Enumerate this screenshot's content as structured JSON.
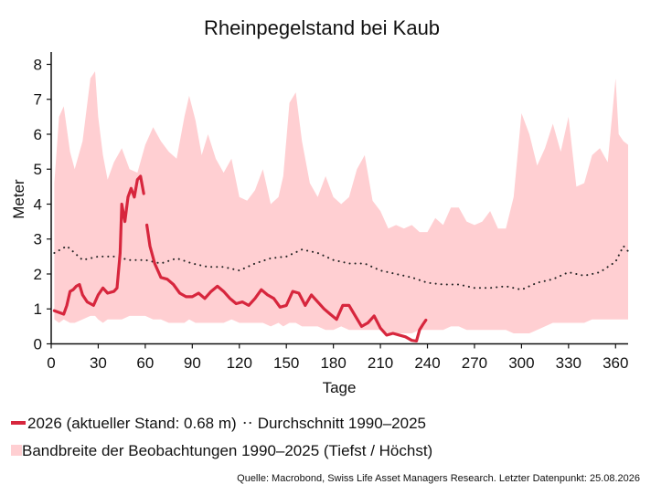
{
  "chart_data": {
    "type": "line",
    "title": "Rheinpegelstand bei Kaub",
    "xlabel": "Tage",
    "ylabel": "Meter",
    "xlim": [
      0,
      368
    ],
    "ylim": [
      0,
      8.3
    ],
    "x_ticks": [
      0,
      30,
      60,
      90,
      120,
      150,
      180,
      210,
      240,
      270,
      300,
      330,
      360
    ],
    "y_ticks": [
      0,
      1,
      2,
      3,
      4,
      5,
      6,
      7,
      8
    ],
    "grid": false,
    "legend_position": "bottom",
    "colors": {
      "current": "#d7263d",
      "average": "#222222",
      "band": "#ffcfd2"
    },
    "band": {
      "name": "Bandbreite der Beobachtungen 1990–2025 (Tiefst / Höchst)",
      "x": [
        2,
        5,
        8,
        12,
        15,
        20,
        25,
        28,
        30,
        33,
        36,
        40,
        45,
        50,
        55,
        60,
        65,
        70,
        75,
        80,
        85,
        88,
        92,
        96,
        100,
        105,
        110,
        115,
        120,
        125,
        130,
        135,
        140,
        145,
        148,
        152,
        156,
        160,
        165,
        170,
        175,
        180,
        185,
        190,
        195,
        200,
        205,
        210,
        215,
        220,
        225,
        230,
        235,
        240,
        245,
        250,
        255,
        260,
        265,
        270,
        275,
        280,
        285,
        290,
        295,
        300,
        305,
        310,
        315,
        320,
        325,
        330,
        335,
        340,
        345,
        350,
        355,
        360,
        362,
        365,
        368
      ],
      "high": [
        4.6,
        6.5,
        6.8,
        5.5,
        5.0,
        5.8,
        7.6,
        7.8,
        6.5,
        5.4,
        4.7,
        5.2,
        5.6,
        5.0,
        4.9,
        5.7,
        6.2,
        5.8,
        5.5,
        5.3,
        6.5,
        7.1,
        6.4,
        5.4,
        6.0,
        5.3,
        4.9,
        5.3,
        4.2,
        4.1,
        4.4,
        5.0,
        4.0,
        4.2,
        4.8,
        6.9,
        7.2,
        5.8,
        4.6,
        4.2,
        4.8,
        4.2,
        4.0,
        4.2,
        5.0,
        5.4,
        4.1,
        3.8,
        3.3,
        3.4,
        3.3,
        3.4,
        3.2,
        3.2,
        3.6,
        3.4,
        3.9,
        3.9,
        3.5,
        3.4,
        3.5,
        3.8,
        3.3,
        3.3,
        4.2,
        6.6,
        6.0,
        5.1,
        5.6,
        6.3,
        5.5,
        6.5,
        4.5,
        4.6,
        5.4,
        5.6,
        5.2,
        7.6,
        6.0,
        5.8,
        5.7
      ],
      "low": [
        0.7,
        0.6,
        0.7,
        0.6,
        0.6,
        0.7,
        0.8,
        0.8,
        0.7,
        0.6,
        0.7,
        0.7,
        0.7,
        0.8,
        0.8,
        0.8,
        0.7,
        0.7,
        0.6,
        0.6,
        0.6,
        0.7,
        0.6,
        0.6,
        0.6,
        0.6,
        0.6,
        0.7,
        0.6,
        0.6,
        0.6,
        0.6,
        0.5,
        0.6,
        0.5,
        0.6,
        0.6,
        0.5,
        0.5,
        0.5,
        0.4,
        0.4,
        0.5,
        0.4,
        0.4,
        0.4,
        0.4,
        0.4,
        0.3,
        0.3,
        0.3,
        0.3,
        0.4,
        0.4,
        0.4,
        0.4,
        0.5,
        0.5,
        0.4,
        0.4,
        0.4,
        0.4,
        0.4,
        0.4,
        0.3,
        0.3,
        0.3,
        0.4,
        0.5,
        0.6,
        0.6,
        0.6,
        0.6,
        0.6,
        0.7,
        0.7,
        0.7,
        0.7,
        0.7,
        0.7,
        0.7
      ]
    },
    "series": [
      {
        "name": "Durchschnitt 1990–2025",
        "x": [
          2,
          10,
          20,
          30,
          40,
          50,
          60,
          70,
          80,
          90,
          100,
          110,
          120,
          130,
          140,
          150,
          160,
          170,
          180,
          190,
          200,
          210,
          220,
          230,
          240,
          250,
          260,
          270,
          280,
          290,
          300,
          310,
          320,
          330,
          340,
          350,
          355,
          360,
          365,
          368
        ],
        "values": [
          2.6,
          2.8,
          2.4,
          2.5,
          2.5,
          2.4,
          2.4,
          2.3,
          2.45,
          2.3,
          2.2,
          2.2,
          2.1,
          2.3,
          2.45,
          2.5,
          2.7,
          2.6,
          2.4,
          2.3,
          2.3,
          2.1,
          2.0,
          1.9,
          1.75,
          1.7,
          1.7,
          1.6,
          1.6,
          1.65,
          1.55,
          1.75,
          1.85,
          2.05,
          1.95,
          2.05,
          2.2,
          2.35,
          2.8,
          2.65
        ]
      },
      {
        "name": "2026 (aktueller Stand: 0.68 m)",
        "x": [
          2,
          5,
          8,
          10,
          12,
          14,
          16,
          18,
          20,
          23,
          27,
          30,
          33,
          36,
          40,
          42,
          44,
          45,
          47,
          49,
          51,
          53,
          55,
          57,
          59,
          60,
          61,
          63,
          66,
          70,
          74,
          78,
          82,
          86,
          90,
          94,
          98,
          102,
          106,
          110,
          114,
          118,
          122,
          126,
          130,
          134,
          138,
          142,
          146,
          150,
          154,
          158,
          162,
          166,
          170,
          174,
          178,
          182,
          186,
          190,
          194,
          198,
          202,
          206,
          210,
          214,
          218,
          222,
          226,
          230,
          233,
          235,
          237,
          239
        ],
        "values": [
          0.95,
          0.9,
          0.85,
          1.1,
          1.5,
          1.55,
          1.65,
          1.7,
          1.4,
          1.2,
          1.1,
          1.4,
          1.6,
          1.45,
          1.5,
          1.6,
          2.6,
          4.0,
          3.5,
          4.2,
          4.45,
          4.2,
          4.7,
          4.8,
          4.3,
          3.9,
          3.4,
          2.8,
          2.3,
          1.9,
          1.85,
          1.7,
          1.45,
          1.35,
          1.35,
          1.45,
          1.3,
          1.5,
          1.65,
          1.5,
          1.3,
          1.15,
          1.2,
          1.1,
          1.3,
          1.55,
          1.4,
          1.3,
          1.05,
          1.1,
          1.5,
          1.45,
          1.1,
          1.4,
          1.2,
          1.0,
          0.85,
          0.7,
          1.1,
          1.1,
          0.8,
          0.5,
          0.6,
          0.8,
          0.45,
          0.25,
          0.3,
          0.25,
          0.2,
          0.1,
          0.08,
          0.4,
          0.55,
          0.68
        ],
        "gap_between_x": [
          59,
          61
        ]
      }
    ],
    "legend": [
      {
        "key": "current",
        "label": "2026 (aktueller Stand: 0.68 m)"
      },
      {
        "key": "average",
        "label": "Durchschnitt 1990–2025"
      },
      {
        "key": "band",
        "label": "Bandbreite der Beobachtungen 1990–2025 (Tiefst / Höchst)"
      }
    ],
    "source": "Quelle: Macrobond, Swiss Life Asset Managers Research. Letzter Datenpunkt: 25.08.2026"
  }
}
